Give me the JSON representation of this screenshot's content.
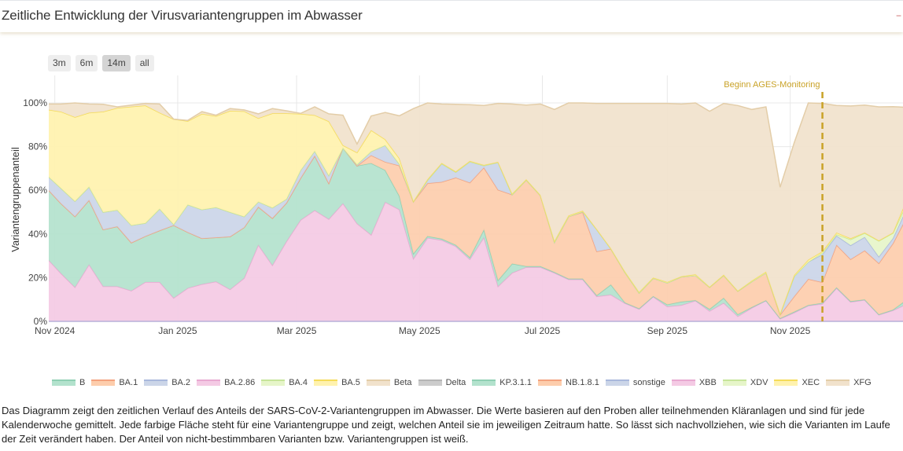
{
  "header": {
    "title": "Zeitliche Entwicklung der Virusvariantengruppen im Abwasser"
  },
  "range_buttons": [
    {
      "label": "3m",
      "active": false
    },
    {
      "label": "6m",
      "active": false
    },
    {
      "label": "14m",
      "active": true
    },
    {
      "label": "all",
      "active": false
    }
  ],
  "description": "Das Diagramm zeigt den zeitlichen Verlauf des Anteils der SARS-CoV-2-Variantengruppen im Abwasser. Die Werte basieren auf den Proben aller teilnehmenden Kläranlagen und sind für jede Kalenderwoche gemittelt. Jede farbige Fläche steht für eine Variantengruppe und zeigt, welchen Anteil sie im jeweiligen Zeitraum hatte. So lässt sich nachvollziehen, wie sich die Varianten im Laufe der Zeit verändert haben. Der Anteil von nicht-bestimmbaren Varianten bzw. Variantengruppen ist weiß.",
  "legend": [
    {
      "name": "B",
      "color": "#b3e2cd",
      "line": "#8fd0b3"
    },
    {
      "name": "BA.1",
      "color": "#fdcdac",
      "line": "#f4a27e"
    },
    {
      "name": "BA.2",
      "color": "#cbd5e8",
      "line": "#a9b8dc"
    },
    {
      "name": "BA.2.86",
      "color": "#f4cae4",
      "line": "#e8a9d1"
    },
    {
      "name": "BA.4",
      "color": "#e6f5c9",
      "line": "#c6e59a"
    },
    {
      "name": "BA.5",
      "color": "#fff2ae",
      "line": "#f5dc5a"
    },
    {
      "name": "Beta",
      "color": "#f1e2cc",
      "line": "#e3cda8"
    },
    {
      "name": "Delta",
      "color": "#cccccc",
      "line": "#b5b5b5"
    },
    {
      "name": "KP.3.1.1",
      "color": "#b3e2cd",
      "line": "#8fd0b3"
    },
    {
      "name": "NB.1.8.1",
      "color": "#fdcdac",
      "line": "#f4a27e"
    },
    {
      "name": "sonstige",
      "color": "#cbd5e8",
      "line": "#a9b8dc"
    },
    {
      "name": "XBB",
      "color": "#f4cae4",
      "line": "#e8a9d1"
    },
    {
      "name": "XDV",
      "color": "#e6f5c9",
      "line": "#c6e59a"
    },
    {
      "name": "XEC",
      "color": "#fff2ae",
      "line": "#f5dc5a"
    },
    {
      "name": "XFG",
      "color": "#f1e2cc",
      "line": "#e3cda8"
    }
  ],
  "chart_data": {
    "type": "area",
    "stacked": true,
    "title": "",
    "xlabel": "",
    "ylabel": "Variantengruppenanteil",
    "xrange": [
      "2024-10-29",
      "2025-12-27"
    ],
    "ylim": [
      0,
      110
    ],
    "grid": true,
    "legend_position": "bottom",
    "x_ticks": [
      {
        "date": "2024-11-01",
        "label": "Nov 2024"
      },
      {
        "date": "2025-01-01",
        "label": "Jan 2025"
      },
      {
        "date": "2025-03-01",
        "label": "Mar 2025"
      },
      {
        "date": "2025-05-01",
        "label": "May 2025"
      },
      {
        "date": "2025-07-01",
        "label": "Jul 2025"
      },
      {
        "date": "2025-09-01",
        "label": "Sep 2025"
      },
      {
        "date": "2025-11-01",
        "label": "Nov 2025"
      }
    ],
    "y_ticks": [
      {
        "value": 0,
        "label": "0%"
      },
      {
        "value": 20,
        "label": "20%"
      },
      {
        "value": 40,
        "label": "40%"
      },
      {
        "value": 60,
        "label": "60%"
      },
      {
        "value": 80,
        "label": "80%"
      },
      {
        "value": 100,
        "label": "100%"
      }
    ],
    "annotation": {
      "date": "2025-11-17",
      "label": "Beginn AGES-Monitoring",
      "color": "#c9a227"
    },
    "x": [
      "2024-10-28",
      "2024-11-04",
      "2024-11-11",
      "2024-11-18",
      "2024-11-25",
      "2024-12-02",
      "2024-12-09",
      "2024-12-16",
      "2024-12-23",
      "2024-12-30",
      "2025-01-06",
      "2025-01-13",
      "2025-01-20",
      "2025-01-27",
      "2025-02-03",
      "2025-02-10",
      "2025-02-17",
      "2025-02-24",
      "2025-03-03",
      "2025-03-10",
      "2025-03-17",
      "2025-03-24",
      "2025-03-31",
      "2025-04-07",
      "2025-04-14",
      "2025-04-21",
      "2025-04-28",
      "2025-05-05",
      "2025-05-12",
      "2025-05-19",
      "2025-05-26",
      "2025-06-02",
      "2025-06-09",
      "2025-06-16",
      "2025-06-23",
      "2025-06-30",
      "2025-07-07",
      "2025-07-14",
      "2025-07-21",
      "2025-07-28",
      "2025-08-04",
      "2025-08-11",
      "2025-08-18",
      "2025-08-25",
      "2025-09-01",
      "2025-09-08",
      "2025-09-15",
      "2025-09-22",
      "2025-09-29",
      "2025-10-06",
      "2025-10-13",
      "2025-10-20",
      "2025-10-27",
      "2025-11-03",
      "2025-11-10",
      "2025-11-17",
      "2025-11-24",
      "2025-12-01",
      "2025-12-08",
      "2025-12-15",
      "2025-12-22",
      "2025-12-29"
    ],
    "series": [
      {
        "name": "BA.2.86",
        "color": "#f4cae4",
        "line": "#e8a9d1",
        "values": [
          29,
          22,
          15.6,
          26,
          16,
          16,
          14,
          18,
          18,
          10.7,
          15.2,
          17,
          18.2,
          14.6,
          19.8,
          35,
          25.7,
          36.6,
          46.4,
          50.8,
          46.8,
          54,
          44.8,
          39.6,
          54.6,
          51.2,
          28.7,
          38.2,
          37.2,
          34.4,
          28.4,
          38.4,
          16,
          22.2,
          24.8,
          24.8,
          22.2,
          19.2,
          19.2,
          11.4,
          12.2,
          8.3,
          5.6,
          11.3,
          6.8,
          7.4,
          9.5,
          4.7,
          8.4,
          2.3,
          6.2,
          9.5,
          1.2,
          4,
          7.2,
          8,
          15.2,
          8.9,
          9.8,
          3,
          5,
          8
        ]
      },
      {
        "name": "KP.3.1.1",
        "color": "#b3e2cd",
        "line": "#8fd0b3",
        "values": [
          32,
          32,
          32.4,
          29.5,
          26,
          27.4,
          22,
          21,
          23.6,
          33.3,
          25.6,
          21,
          20.2,
          24.2,
          23.2,
          17.4,
          21.5,
          17.6,
          19.2,
          25,
          16.4,
          25.4,
          26.4,
          32.8,
          14.6,
          6.2,
          2.3,
          0.8,
          0.6,
          0.6,
          0.9,
          3.6,
          2.8,
          4.2,
          0.4,
          0.4,
          0.3,
          0.3,
          0.3,
          0.5,
          4.6,
          0.3,
          0.3,
          0.2,
          0.9,
          1.6,
          0.1,
          0.9,
          2.3,
          0.9,
          0.3,
          0.1,
          0.2,
          0.4,
          0.2,
          0.4,
          0.3,
          0.3,
          0.2,
          0.2,
          0.3,
          2
        ]
      },
      {
        "name": "NB.1.8.1",
        "color": "#fdcdac",
        "line": "#f4a27e",
        "values": [
          0,
          0,
          0,
          0,
          0,
          0,
          0,
          0,
          0,
          0,
          0,
          0,
          0,
          0,
          0,
          0,
          0,
          0,
          0,
          0,
          0,
          0,
          0,
          3.6,
          3.8,
          13.9,
          23.8,
          24.2,
          26,
          30.8,
          34.2,
          28.4,
          41.4,
          31.6,
          39.5,
          32.4,
          13.7,
          28.5,
          30.5,
          20.1,
          16.4,
          13.8,
          7.1,
          8.2,
          9.9,
          11.4,
          11.4,
          10,
          10.3,
          10.6,
          11.7,
          12.6,
          1.6,
          7,
          12,
          9.5,
          19.5,
          19.2,
          22.4,
          23.4,
          30.3,
          38
        ]
      },
      {
        "name": "sonstige",
        "color": "#cbd5e8",
        "line": "#a9b8dc",
        "values": [
          6,
          7,
          7,
          6.1,
          8,
          7.6,
          8,
          6,
          9.9,
          0.4,
          12.6,
          13.2,
          13.8,
          11.2,
          5,
          2.4,
          4.8,
          1.8,
          3.6,
          2.2,
          3.6,
          0,
          0.6,
          1.8,
          7.6,
          0.7,
          0,
          1.4,
          8.4,
          2.5,
          9.6,
          0.9,
          12.6,
          0,
          0,
          0,
          0,
          0,
          0.2,
          10,
          0,
          0,
          0,
          0,
          0,
          0,
          0,
          0,
          0,
          0,
          0,
          0,
          0.3,
          9.2,
          7.8,
          12.7,
          4.2,
          6.4,
          6.2,
          3,
          2.4,
          4
        ]
      },
      {
        "name": "XDV",
        "color": "#e6f5c9",
        "line": "#c6e59a",
        "values": [
          0,
          0,
          0,
          0,
          0,
          0,
          0,
          0,
          0,
          0,
          0,
          0,
          0,
          0,
          0,
          0,
          0,
          0,
          0,
          0,
          0,
          0,
          0,
          0,
          0,
          0,
          0,
          0,
          0,
          0,
          0,
          0,
          0,
          0,
          0,
          0,
          0,
          0,
          0,
          0,
          0,
          0,
          0,
          0,
          0,
          0,
          0,
          0,
          0,
          0,
          0,
          0,
          0,
          0,
          0,
          0.8,
          0.6,
          2.7,
          1.8,
          7.2,
          2.4,
          2
        ]
      },
      {
        "name": "XEC",
        "color": "#fff2ae",
        "line": "#f5dc5a",
        "values": [
          30,
          35,
          38.5,
          33.9,
          46,
          46.7,
          54.3,
          53.8,
          44,
          48.2,
          38.3,
          43.8,
          41.8,
          46.4,
          48.2,
          38.2,
          43.2,
          39.2,
          25.8,
          16.4,
          24.8,
          1.2,
          5.5,
          9.7,
          2.7,
          2.6,
          0.2,
          0.4,
          0.3,
          0.3,
          0.3,
          0.3,
          0.2,
          0.4,
          0.3,
          0.2,
          0.6,
          0.4,
          0.4,
          0.2,
          0.2,
          0.4,
          0.4,
          0.3,
          0.4,
          0.2,
          0.5,
          0.2,
          0.3,
          0.2,
          0.4,
          0.5,
          0.3,
          0.6,
          1,
          0.6,
          0.8,
          0.5,
          0.2,
          0.2,
          0.2,
          2
        ]
      },
      {
        "name": "XFG",
        "color": "#f1e2cc",
        "line": "#e3cda8",
        "values": [
          2.5,
          3.5,
          6.5,
          4,
          3.4,
          0.5,
          0.7,
          1,
          4,
          0,
          0.3,
          1,
          0.4,
          1,
          0.6,
          2,
          2.2,
          1.2,
          0.2,
          3.8,
          3.4,
          13.8,
          3.9,
          6.5,
          12.3,
          19.5,
          42.4,
          35,
          27,
          30.8,
          25.8,
          27.2,
          26.8,
          41.1,
          34,
          41.7,
          60.2,
          51.6,
          49.4,
          57.6,
          66.4,
          77,
          86.4,
          79.8,
          81.8,
          78.9,
          78.5,
          80.4,
          78.5,
          84.8,
          78.4,
          75.5,
          57.8,
          60.6,
          71.8,
          67.8,
          58.2,
          60.6,
          58.4,
          61.2,
          57.7,
          42
        ]
      }
    ]
  }
}
